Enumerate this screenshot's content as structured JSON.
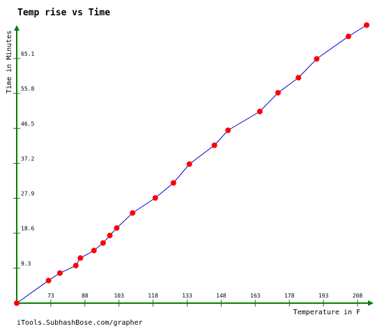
{
  "chart_data": {
    "type": "line",
    "title": "Temp rise vs Time",
    "xlabel": "Temperature in F",
    "ylabel": "Time in Minutes",
    "xlim": [
      58,
      212
    ],
    "ylim": [
      0,
      74
    ],
    "x_ticks": [
      73,
      88,
      103,
      118,
      133,
      148,
      163,
      178,
      193,
      208
    ],
    "y_ticks": [
      9.3,
      18.6,
      27.9,
      37.2,
      46.5,
      55.8,
      65.1
    ],
    "grid": false,
    "series": [
      {
        "color": "#0000cc",
        "marker_color": "#ff0000",
        "x": [
          58,
          72,
          77,
          84,
          86,
          92,
          96,
          99,
          102,
          109,
          119,
          127,
          134,
          145,
          151,
          165,
          173,
          182,
          190,
          204,
          212
        ],
        "y": [
          0,
          6,
          8,
          10,
          12,
          14,
          16,
          18,
          20,
          24,
          28,
          32,
          37,
          42,
          46,
          51,
          56,
          60,
          65,
          71,
          74
        ]
      }
    ]
  },
  "footer": {
    "credit": "iTools.SubhashBose.com/grapher"
  },
  "colors": {
    "axis": "#008000",
    "line": "#0000cc",
    "marker": "#ff0000"
  }
}
